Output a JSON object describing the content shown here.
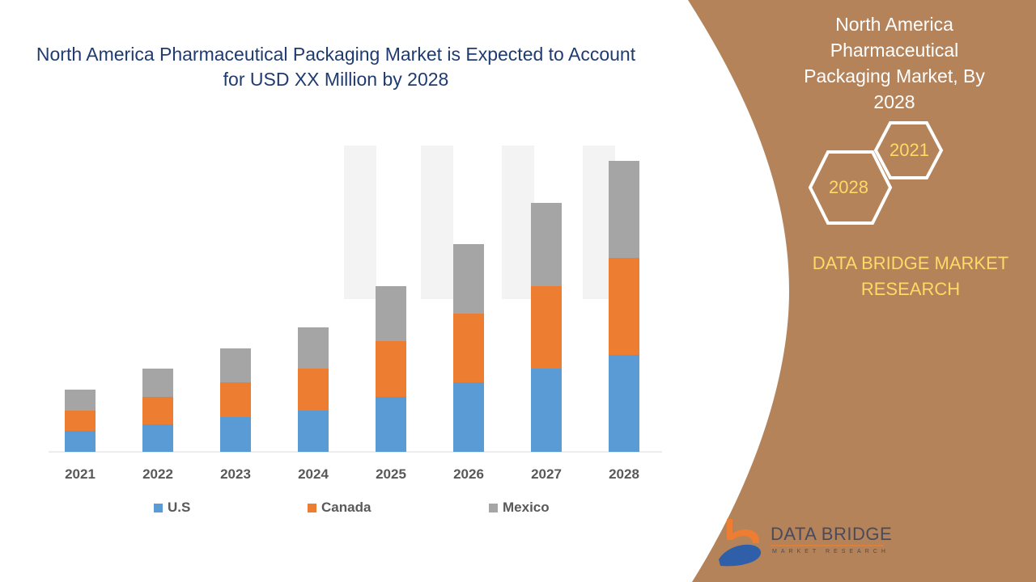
{
  "chart_data": {
    "type": "bar",
    "stacked": true,
    "title": "North America Pharmaceutical Packaging Market is Expected to Account for USD XX Million by 2028",
    "categories": [
      "2021",
      "2022",
      "2023",
      "2024",
      "2025",
      "2026",
      "2027",
      "2028"
    ],
    "series": [
      {
        "name": "U.S",
        "color": "#5B9BD5",
        "values": [
          26,
          34,
          43,
          51,
          68,
          86,
          103,
          120
        ]
      },
      {
        "name": "Canada",
        "color": "#ED7D31",
        "values": [
          25,
          34,
          43,
          52,
          69,
          85,
          102,
          120
        ]
      },
      {
        "name": "Mexico",
        "color": "#A5A5A5",
        "values": [
          26,
          35,
          42,
          51,
          68,
          86,
          103,
          120
        ]
      }
    ],
    "xlabel": "",
    "ylabel": "",
    "ylim": [
      0,
      360
    ],
    "grid": false,
    "legend_position": "bottom"
  },
  "side_panel": {
    "title": "North America Pharmaceutical Packaging Market, By 2028",
    "hex_start": "2021",
    "hex_end": "2028",
    "brand": "DATA BRIDGE MARKET RESEARCH",
    "logo_text": "DATA BRIDGE",
    "logo_sub": "MARKET RESEARCH",
    "panel_color": "#B5835A"
  }
}
